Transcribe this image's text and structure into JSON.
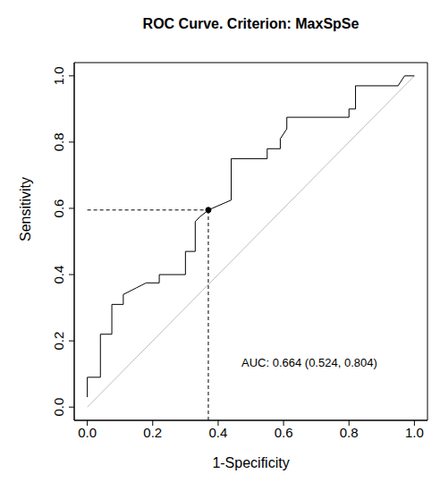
{
  "chart_data": {
    "type": "line",
    "title": "ROC Curve. Criterion: MaxSpSe",
    "x_label": "1-Specificity",
    "y_label": "Sensitivity",
    "xlim": [
      -0.04,
      1.04
    ],
    "ylim": [
      -0.04,
      1.04
    ],
    "xticks": [
      {
        "value": 0,
        "label": "0.0"
      },
      {
        "value": 0.2,
        "label": "0.2"
      },
      {
        "value": 0.4,
        "label": "0.4"
      },
      {
        "value": 0.6,
        "label": "0.6"
      },
      {
        "value": 0.8,
        "label": "0.8"
      },
      {
        "value": 1,
        "label": "1.0"
      }
    ],
    "yticks": [
      {
        "value": 0,
        "label": "0.0"
      },
      {
        "value": 0.2,
        "label": "0.2"
      },
      {
        "value": 0.4,
        "label": "0.4"
      },
      {
        "value": 0.6,
        "label": "0.6"
      },
      {
        "value": 0.8,
        "label": "0.8"
      },
      {
        "value": 1,
        "label": "1.0"
      }
    ],
    "grid": false,
    "series": [
      {
        "name": "ROC",
        "color": "#000000",
        "x": [
          0,
          0,
          0.04,
          0.04,
          0.075,
          0.075,
          0.11,
          0.11,
          0.15,
          0.18,
          0.22,
          0.22,
          0.3,
          0.3,
          0.33,
          0.33,
          0.345,
          0.37,
          0.44,
          0.44,
          0.55,
          0.55,
          0.59,
          0.59,
          0.61,
          0.61,
          0.8,
          0.8,
          0.82,
          0.82,
          0.95,
          0.97,
          1.0
        ],
        "values": [
          0.03,
          0.09,
          0.09,
          0.22,
          0.22,
          0.31,
          0.31,
          0.34,
          0.36,
          0.375,
          0.375,
          0.4,
          0.4,
          0.47,
          0.47,
          0.56,
          0.575,
          0.595,
          0.625,
          0.75,
          0.75,
          0.78,
          0.78,
          0.81,
          0.84,
          0.875,
          0.875,
          0.9,
          0.9,
          0.97,
          0.97,
          1.0,
          1.0
        ]
      }
    ],
    "diagonal": {
      "x": [
        0,
        1
      ],
      "y": [
        0,
        1
      ],
      "color": "#bebebe"
    },
    "cutoff_point": {
      "x": 0.37,
      "y": 0.595,
      "line_style": "dashed"
    },
    "annotation": "AUC: 0.664 (0.524, 0.804)"
  }
}
